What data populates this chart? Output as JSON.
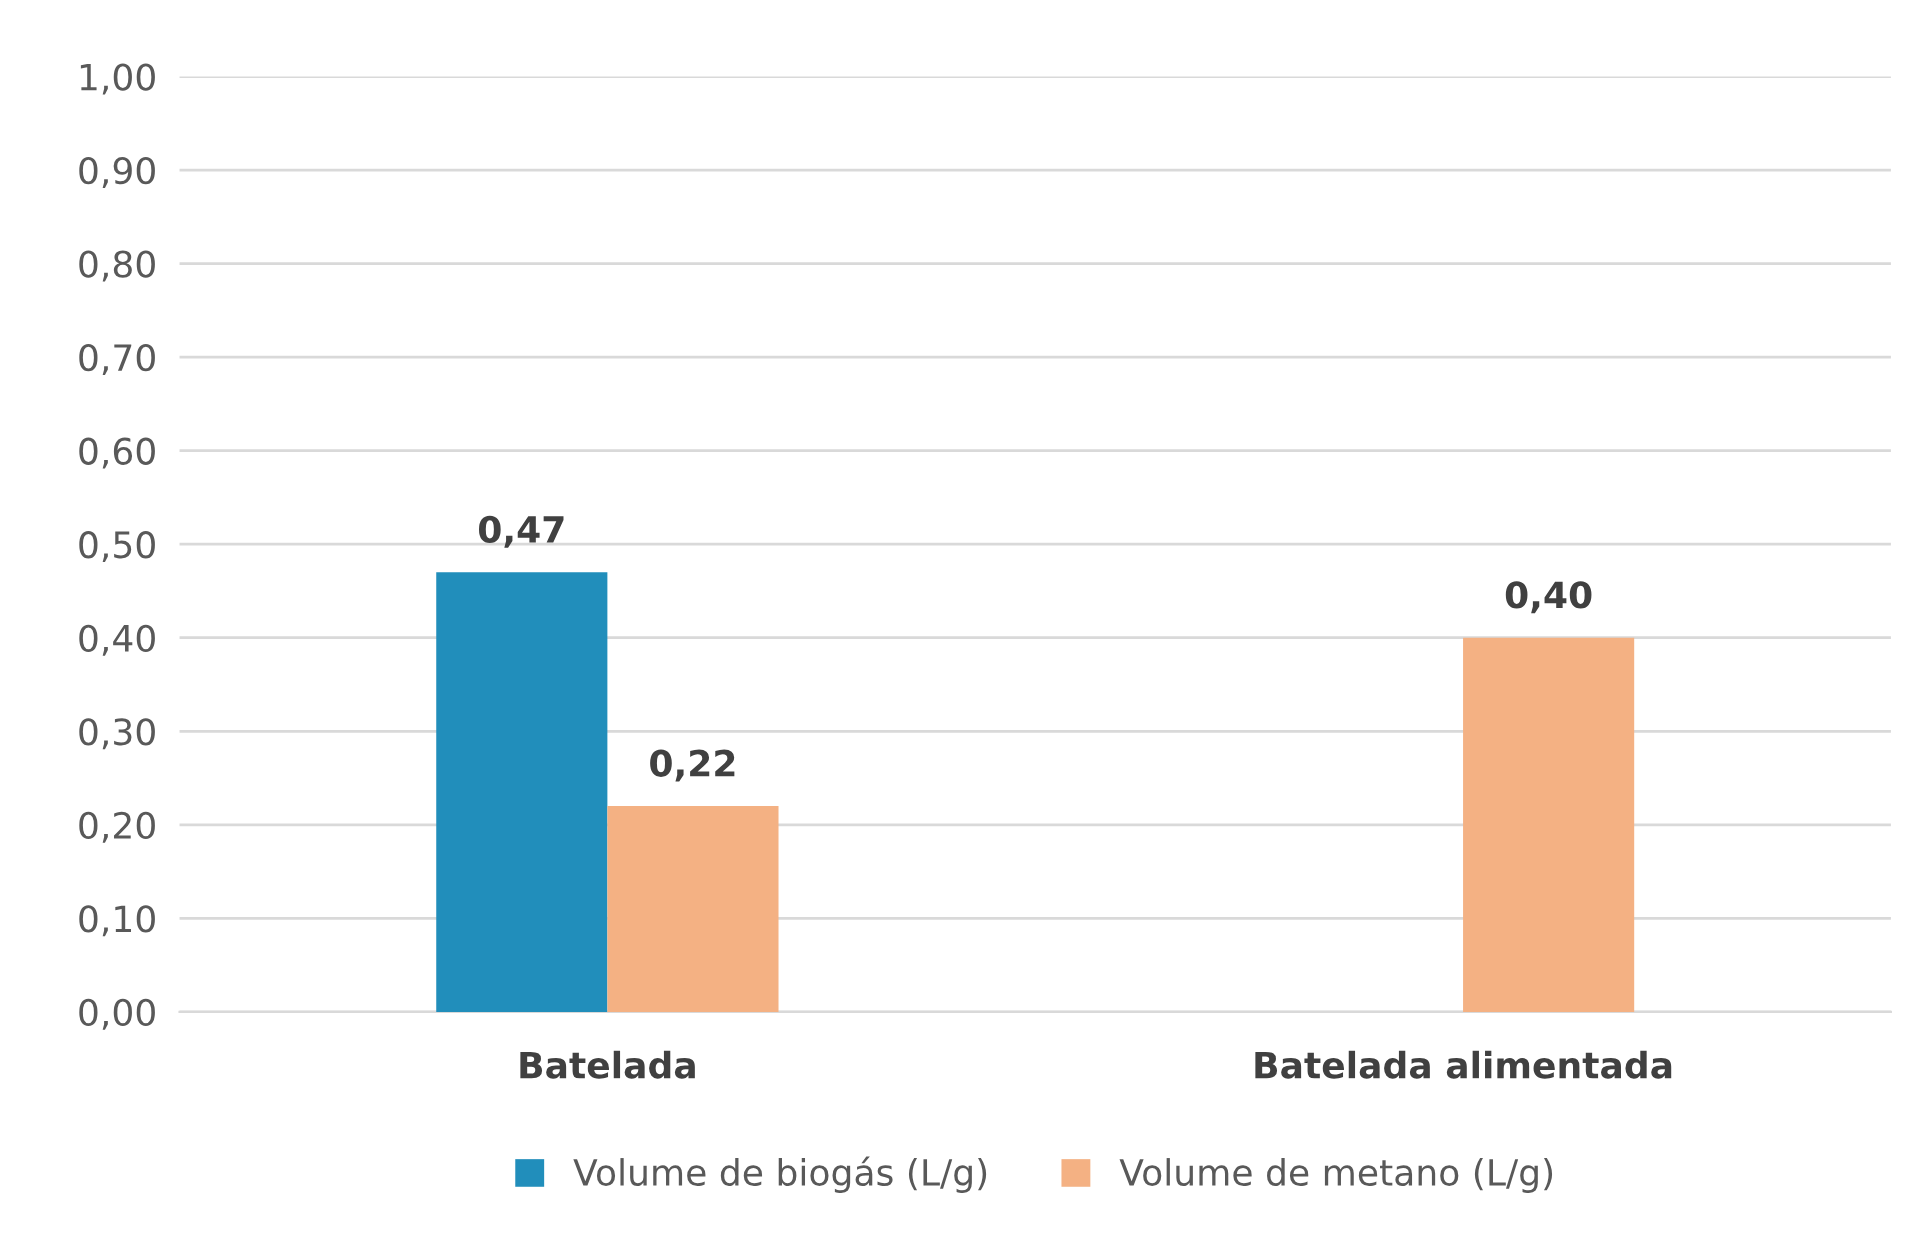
{
  "chart_data": {
    "type": "bar",
    "categories": [
      "Batelada",
      "Batelada alimentada"
    ],
    "series": [
      {
        "name": "Volume de biogás (L/g)",
        "color": "#218ebb",
        "values": [
          0.47,
          null
        ],
        "value_labels": [
          "0,47",
          null
        ]
      },
      {
        "name": "Volume de metano (L/g)",
        "color": "#f4b183",
        "values": [
          0.22,
          0.4
        ],
        "value_labels": [
          "0,22",
          "0,40"
        ]
      }
    ],
    "ylim": [
      0,
      1
    ],
    "yticks": [
      {
        "value": 0,
        "label": "0,00"
      },
      {
        "value": 0.1,
        "label": "0,10"
      },
      {
        "value": 0.2,
        "label": "0,20"
      },
      {
        "value": 0.3,
        "label": "0,30"
      },
      {
        "value": 0.4,
        "label": "0,40"
      },
      {
        "value": 0.5,
        "label": "0,50"
      },
      {
        "value": 0.6,
        "label": "0,60"
      },
      {
        "value": 0.7,
        "label": "0,70"
      },
      {
        "value": 0.8,
        "label": "0,80"
      },
      {
        "value": 0.9,
        "label": "0,90"
      },
      {
        "value": 1,
        "label": "1,00"
      }
    ],
    "grid": "y",
    "legend": "bottom"
  }
}
